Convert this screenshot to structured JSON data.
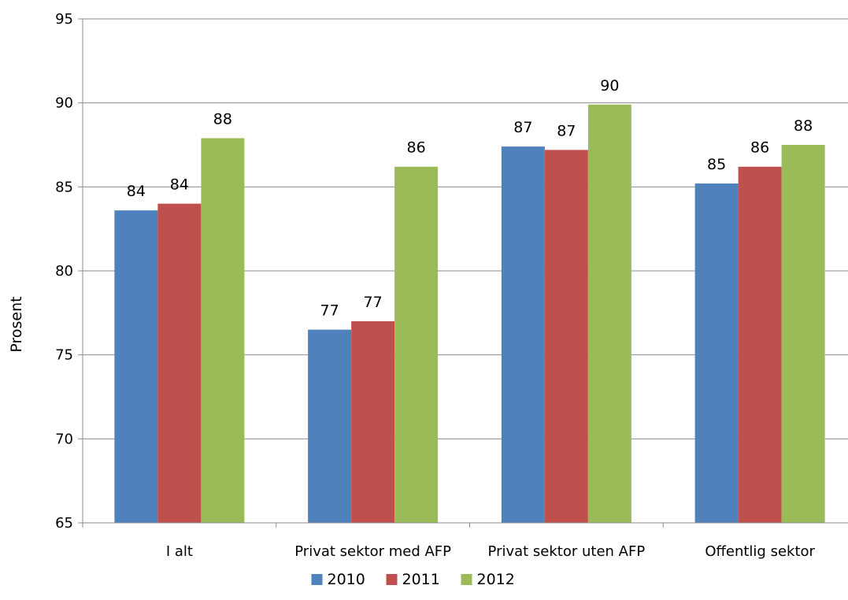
{
  "chart_data": {
    "type": "bar",
    "title": "",
    "xlabel": "",
    "ylabel": "Prosent",
    "ylim": [
      65,
      95
    ],
    "yticks": [
      65,
      70,
      75,
      80,
      85,
      90,
      95
    ],
    "grid": true,
    "legend_position": "bottom",
    "categories": [
      "I alt",
      "Privat sektor med AFP",
      "Privat sektor uten AFP",
      "Offentlig sektor"
    ],
    "series": [
      {
        "name": "2010",
        "color": "#4F81BD",
        "values": [
          83.6,
          76.5,
          87.4,
          85.2
        ],
        "labels": [
          "84",
          "77",
          "87",
          "85"
        ]
      },
      {
        "name": "2011",
        "color": "#C0504D",
        "values": [
          84.0,
          77.0,
          87.2,
          86.2
        ],
        "labels": [
          "84",
          "77",
          "87",
          "86"
        ]
      },
      {
        "name": "2012",
        "color": "#9BBB59",
        "values": [
          87.9,
          86.2,
          89.9,
          87.5
        ],
        "labels": [
          "88",
          "86",
          "90",
          "88"
        ]
      }
    ]
  }
}
